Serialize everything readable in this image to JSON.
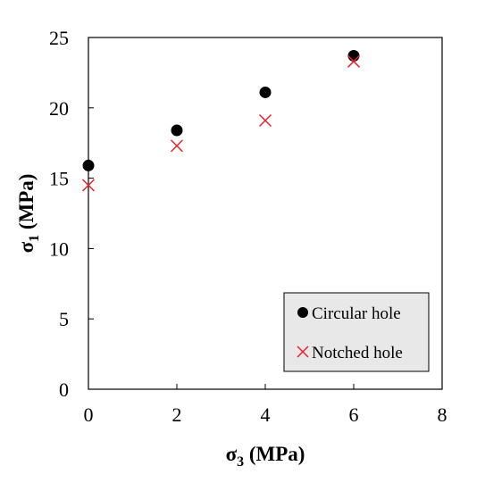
{
  "chart_data": {
    "type": "scatter",
    "xlabel": "σ₃ (MPa)",
    "xlabel_symbol": "σ",
    "xlabel_subscript": "3",
    "xlabel_unit": " (MPa)",
    "ylabel": "σ₁ (MPa)",
    "ylabel_symbol": "σ",
    "ylabel_subscript": "1",
    "ylabel_unit": " (MPa)",
    "xlim": [
      0,
      8
    ],
    "ylim": [
      0,
      25
    ],
    "x_ticks": [
      0,
      2,
      4,
      6,
      8
    ],
    "y_ticks": [
      0,
      5,
      10,
      15,
      20,
      25
    ],
    "grid": false,
    "legend_position": "bottom-right",
    "series": [
      {
        "name": "Circular hole",
        "marker": "filled-circle",
        "color": "#000000",
        "points": [
          {
            "x": 0,
            "y": 15.9
          },
          {
            "x": 2,
            "y": 18.4
          },
          {
            "x": 4,
            "y": 21.1
          },
          {
            "x": 6,
            "y": 23.7
          }
        ]
      },
      {
        "name": "Notched hole",
        "marker": "x-cross",
        "color": "#e8212b",
        "points": [
          {
            "x": 0,
            "y": 14.5
          },
          {
            "x": 2,
            "y": 17.3
          },
          {
            "x": 4,
            "y": 19.1
          },
          {
            "x": 6,
            "y": 23.3
          }
        ]
      }
    ]
  }
}
